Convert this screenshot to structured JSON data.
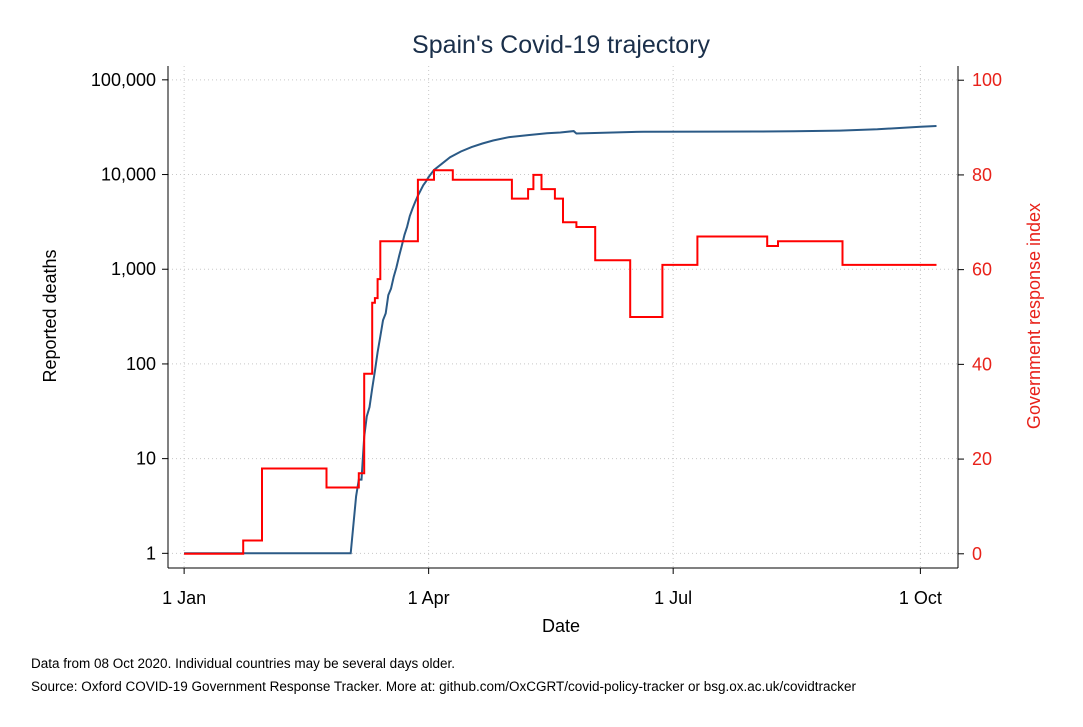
{
  "chart_data": {
    "type": "line",
    "title": "Spain's Covid-19 trajectory",
    "xlabel": "Date",
    "ylabel": "Reported deaths",
    "y2label": "Government response index",
    "x_ticks": [
      {
        "date": "2020-01-01",
        "label": "1 Jan"
      },
      {
        "date": "2020-04-01",
        "label": "1 Apr"
      },
      {
        "date": "2020-07-01",
        "label": "1 Jul"
      },
      {
        "date": "2020-10-01",
        "label": "1 Oct"
      }
    ],
    "xlim": [
      "2019-12-26",
      "2020-10-15"
    ],
    "y_scale": "log",
    "ylim": [
      0.7,
      140000
    ],
    "y_ticks": [
      {
        "value": 1,
        "label": "1"
      },
      {
        "value": 10,
        "label": "10"
      },
      {
        "value": 100,
        "label": "100"
      },
      {
        "value": 1000,
        "label": "1,000"
      },
      {
        "value": 10000,
        "label": "10,000"
      },
      {
        "value": 100000,
        "label": "100,000"
      }
    ],
    "y2lim": [
      -3,
      103
    ],
    "y2_ticks": [
      {
        "value": 0,
        "label": "0"
      },
      {
        "value": 20,
        "label": "20"
      },
      {
        "value": 40,
        "label": "40"
      },
      {
        "value": 60,
        "label": "60"
      },
      {
        "value": 80,
        "label": "80"
      },
      {
        "value": 100,
        "label": "100"
      }
    ],
    "grid": true,
    "series": [
      {
        "axis": "left",
        "color": "#2b5a86",
        "points": [
          [
            "2020-01-01",
            1
          ],
          [
            "2020-03-03",
            1
          ],
          [
            "2020-03-05",
            4
          ],
          [
            "2020-03-06",
            6
          ],
          [
            "2020-03-07",
            6
          ],
          [
            "2020-03-08",
            17
          ],
          [
            "2020-03-09",
            28
          ],
          [
            "2020-03-10",
            35
          ],
          [
            "2020-03-11",
            55
          ],
          [
            "2020-03-12",
            84
          ],
          [
            "2020-03-13",
            133
          ],
          [
            "2020-03-14",
            195
          ],
          [
            "2020-03-15",
            289
          ],
          [
            "2020-03-16",
            342
          ],
          [
            "2020-03-17",
            533
          ],
          [
            "2020-03-18",
            623
          ],
          [
            "2020-03-19",
            830
          ],
          [
            "2020-03-20",
            1043
          ],
          [
            "2020-03-21",
            1375
          ],
          [
            "2020-03-22",
            1772
          ],
          [
            "2020-03-23",
            2311
          ],
          [
            "2020-03-24",
            2808
          ],
          [
            "2020-03-25",
            3647
          ],
          [
            "2020-03-26",
            4365
          ],
          [
            "2020-03-27",
            5138
          ],
          [
            "2020-03-28",
            5982
          ],
          [
            "2020-03-29",
            6803
          ],
          [
            "2020-03-30",
            7716
          ],
          [
            "2020-03-31",
            8464
          ],
          [
            "2020-04-01",
            9387
          ],
          [
            "2020-04-03",
            11198
          ],
          [
            "2020-04-06",
            13055
          ],
          [
            "2020-04-09",
            15238
          ],
          [
            "2020-04-13",
            17489
          ],
          [
            "2020-04-17",
            19478
          ],
          [
            "2020-04-21",
            21282
          ],
          [
            "2020-04-25",
            22902
          ],
          [
            "2020-05-01",
            24824
          ],
          [
            "2020-05-08",
            26070
          ],
          [
            "2020-05-15",
            27321
          ],
          [
            "2020-05-20",
            27778
          ],
          [
            "2020-05-25",
            28752
          ],
          [
            "2020-05-26",
            27117
          ],
          [
            "2020-06-20",
            28315
          ],
          [
            "2020-07-15",
            28416
          ],
          [
            "2020-08-01",
            28445
          ],
          [
            "2020-08-15",
            28617
          ],
          [
            "2020-09-01",
            29094
          ],
          [
            "2020-09-15",
            30004
          ],
          [
            "2020-10-01",
            31973
          ],
          [
            "2020-10-07",
            32562
          ]
        ]
      },
      {
        "axis": "right",
        "color": "#ff0000",
        "points": [
          [
            "2020-01-01",
            0
          ],
          [
            "2020-01-23",
            0
          ],
          [
            "2020-01-23",
            2.8
          ],
          [
            "2020-01-30",
            2.8
          ],
          [
            "2020-01-30",
            18
          ],
          [
            "2020-02-23",
            18
          ],
          [
            "2020-02-23",
            14
          ],
          [
            "2020-03-06",
            14
          ],
          [
            "2020-03-06",
            17
          ],
          [
            "2020-03-08",
            17
          ],
          [
            "2020-03-08",
            38
          ],
          [
            "2020-03-11",
            38
          ],
          [
            "2020-03-11",
            53
          ],
          [
            "2020-03-12",
            53
          ],
          [
            "2020-03-12",
            54
          ],
          [
            "2020-03-13",
            54
          ],
          [
            "2020-03-13",
            58
          ],
          [
            "2020-03-14",
            58
          ],
          [
            "2020-03-14",
            66
          ],
          [
            "2020-03-28",
            66
          ],
          [
            "2020-03-28",
            79
          ],
          [
            "2020-04-03",
            79
          ],
          [
            "2020-04-03",
            81
          ],
          [
            "2020-04-10",
            81
          ],
          [
            "2020-04-10",
            79
          ],
          [
            "2020-05-02",
            79
          ],
          [
            "2020-05-02",
            75
          ],
          [
            "2020-05-08",
            75
          ],
          [
            "2020-05-08",
            77
          ],
          [
            "2020-05-10",
            77
          ],
          [
            "2020-05-10",
            80
          ],
          [
            "2020-05-13",
            80
          ],
          [
            "2020-05-13",
            77
          ],
          [
            "2020-05-18",
            77
          ],
          [
            "2020-05-18",
            75
          ],
          [
            "2020-05-21",
            75
          ],
          [
            "2020-05-21",
            70
          ],
          [
            "2020-05-26",
            70
          ],
          [
            "2020-05-26",
            69
          ],
          [
            "2020-06-02",
            69
          ],
          [
            "2020-06-02",
            62
          ],
          [
            "2020-06-15",
            62
          ],
          [
            "2020-06-15",
            50
          ],
          [
            "2020-06-27",
            50
          ],
          [
            "2020-06-27",
            61
          ],
          [
            "2020-07-10",
            61
          ],
          [
            "2020-07-10",
            67
          ],
          [
            "2020-08-05",
            67
          ],
          [
            "2020-08-05",
            65
          ],
          [
            "2020-08-09",
            65
          ],
          [
            "2020-08-09",
            66
          ],
          [
            "2020-09-02",
            66
          ],
          [
            "2020-09-02",
            61
          ],
          [
            "2020-10-07",
            61
          ]
        ]
      }
    ]
  },
  "notes": {
    "data_note": "Data from 08 Oct 2020. Individual countries may be several days older.",
    "source": "Source: Oxford COVID-19 Government Response Tracker. More at: github.com/OxCGRT/covid-policy-tracker or bsg.ox.ac.uk/covidtracker"
  }
}
